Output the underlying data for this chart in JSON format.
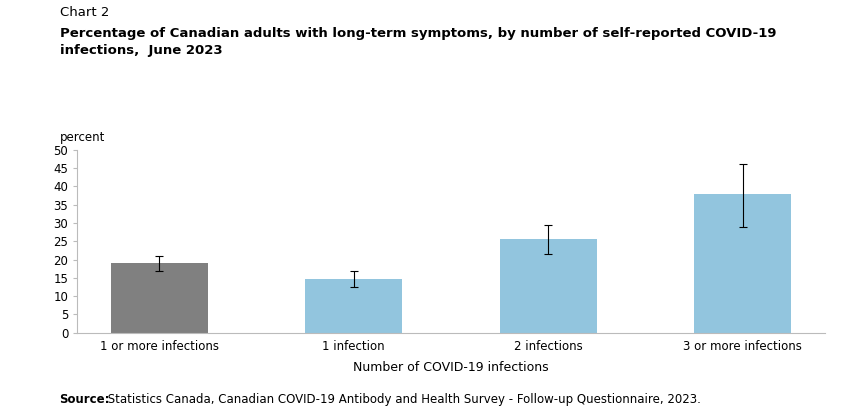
{
  "chart_label": "Chart 2",
  "title": "Percentage of Canadian adults with long-term symptoms, by number of self-reported COVID-19\ninfections,  June 2023",
  "ylabel": "percent",
  "xlabel": "Number of COVID-19 infections",
  "categories": [
    "1 or more infections",
    "1 infection",
    "2 infections",
    "3 or more infections"
  ],
  "values": [
    19.0,
    14.8,
    25.5,
    38.0
  ],
  "errors_upper": [
    2.0,
    2.2,
    4.0,
    8.0
  ],
  "errors_lower": [
    2.0,
    2.2,
    4.0,
    9.0
  ],
  "bar_colors": [
    "#808080",
    "#92C5DE",
    "#92C5DE",
    "#92C5DE"
  ],
  "ylim": [
    0,
    50
  ],
  "yticks": [
    0,
    5,
    10,
    15,
    20,
    25,
    30,
    35,
    40,
    45,
    50
  ],
  "source_bold": "Source:",
  "source_rest": " Statistics Canada, Canadian COVID-19 Antibody and Health Survey - Follow-up Questionnaire, 2023.",
  "background_color": "#ffffff",
  "bar_width": 0.5,
  "chart_label_fontsize": 9.5,
  "title_fontsize": 9.5,
  "ylabel_fontsize": 8.5,
  "xlabel_fontsize": 9,
  "tick_fontsize": 8.5,
  "source_fontsize": 8.5
}
